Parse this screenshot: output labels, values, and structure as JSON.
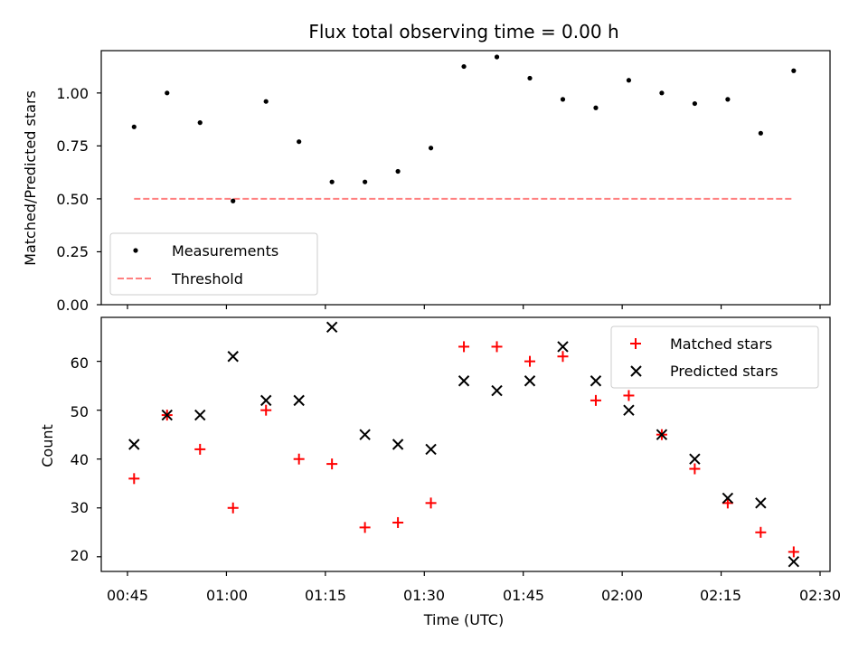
{
  "chart_data": [
    {
      "type": "scatter",
      "title": "Flux total observing time = 0.00 h",
      "xlabel": "",
      "ylabel": "Matched/Predicted stars",
      "ylim": [
        0,
        1.2
      ],
      "yticks": [
        "0.00",
        "0.25",
        "0.50",
        "0.75",
        "1.00"
      ],
      "x": [
        "00:46",
        "00:51",
        "00:56",
        "01:01",
        "01:06",
        "01:11",
        "01:16",
        "01:21",
        "01:26",
        "01:31",
        "01:36",
        "01:41",
        "01:46",
        "01:51",
        "01:56",
        "02:01",
        "02:06",
        "02:11",
        "02:16",
        "02:21",
        "02:26"
      ],
      "series": [
        {
          "name": "Measurements",
          "style": "dots",
          "color": "#000000",
          "values": [
            0.84,
            1.0,
            0.86,
            0.49,
            0.96,
            0.77,
            0.58,
            0.58,
            0.63,
            0.74,
            1.125,
            1.17,
            1.07,
            0.97,
            0.93,
            1.06,
            1.0,
            0.95,
            0.97,
            0.81,
            1.105
          ]
        },
        {
          "name": "Threshold",
          "style": "dashed-line",
          "color": "#ff7f7f",
          "values": [
            0.5,
            0.5
          ]
        }
      ],
      "legend": "lower-left",
      "grid": false
    },
    {
      "type": "scatter",
      "title": "",
      "xlabel": "Time (UTC)",
      "ylabel": "Count",
      "ylim": [
        17,
        69
      ],
      "yticks": [
        "20",
        "30",
        "40",
        "50",
        "60"
      ],
      "xticks": [
        "00:45",
        "01:00",
        "01:15",
        "01:30",
        "01:45",
        "02:00",
        "02:15",
        "02:30"
      ],
      "x": [
        "00:46",
        "00:51",
        "00:56",
        "01:01",
        "01:06",
        "01:11",
        "01:16",
        "01:21",
        "01:26",
        "01:31",
        "01:36",
        "01:41",
        "01:46",
        "01:51",
        "01:56",
        "02:01",
        "02:06",
        "02:11",
        "02:16",
        "02:21",
        "02:26"
      ],
      "series": [
        {
          "name": "Matched stars",
          "marker": "plus",
          "color": "#ff0000",
          "values": [
            36,
            49,
            42,
            30,
            50,
            40,
            39,
            26,
            27,
            31,
            63,
            63,
            60,
            61,
            52,
            53,
            45,
            38,
            31,
            25,
            21
          ]
        },
        {
          "name": "Predicted stars",
          "marker": "x",
          "color": "#000000",
          "values": [
            43,
            49,
            49,
            61,
            52,
            52,
            67,
            45,
            43,
            42,
            56,
            54,
            56,
            63,
            56,
            50,
            45,
            40,
            32,
            31,
            19
          ]
        }
      ],
      "legend": "top-right",
      "grid": false
    }
  ]
}
